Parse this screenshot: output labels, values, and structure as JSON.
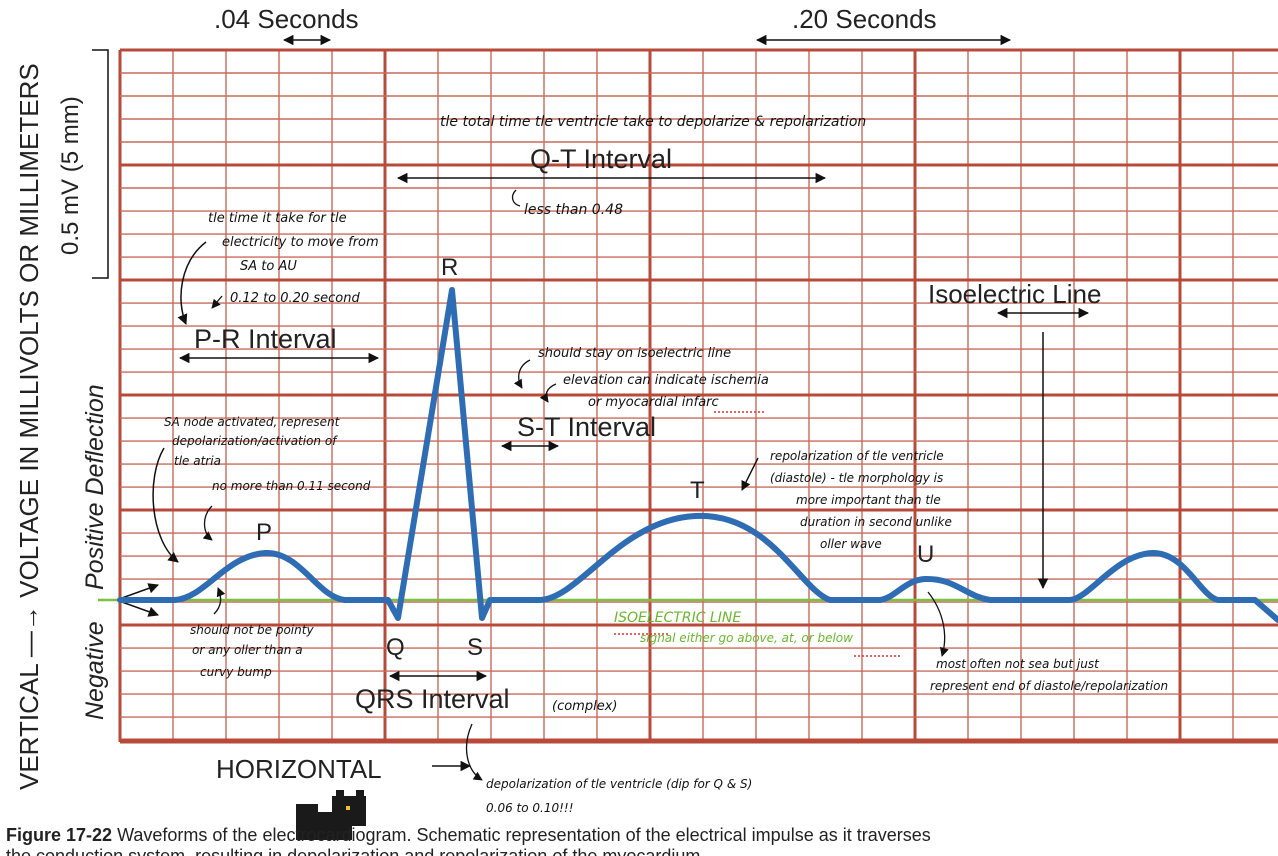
{
  "labels": {
    "time_small": ".04 Seconds",
    "time_large": ".20 Seconds",
    "vertical_axis": "VERTICAL —→ VOLTAGE IN MILLIVOLTS OR MILLIMETERS",
    "scale": "0.5 mV (5 mm)",
    "positive": "Positive Deflection",
    "negative": "Negative",
    "horizontal": "HORIZONTAL",
    "qt": "Q-T Interval",
    "pr": "P-R Interval",
    "st": "S-T Interval",
    "qrs": "QRS Interval",
    "iso": "Isoelectric Line",
    "wave_p": "P",
    "wave_q": "Q",
    "wave_r": "R",
    "wave_s": "S",
    "wave_t": "T",
    "wave_u": "U"
  },
  "caption": {
    "bold": "Figure 17-22",
    "line1": "Waveforms of the electrocardiogram. Schematic representation of the electrical impulse as it traverses",
    "line2": "the conduction system, resulting in depolarization and repolarization of the myocardium."
  },
  "notes": {
    "qt_desc": "tle total time tle ventricle take to depolarize & repolarization",
    "qt_limit": "less than 0.48",
    "pr_desc1": "tle time it take for tle",
    "pr_desc2": "electricity to move from",
    "pr_desc3": "SA to AU",
    "pr_range": "0.12 to 0.20 second",
    "st_1": "should stay on isoelectric line",
    "st_2": "elevation can indicate ischemia",
    "st_3": "or myocardial infarc",
    "p_1": "SA node activated, represent",
    "p_2": "depolarization/activation of",
    "p_3": "tle atria",
    "p_4": "no more than 0.11 second",
    "t_1": "repolarization of tle ventricle",
    "t_2": "(diastole) - tle morphology is",
    "t_3": "more important than tle",
    "t_4": "duration in second unlike",
    "t_5": "oller wave",
    "bump_1": "should not be pointy",
    "bump_2": "or any oller than a",
    "bump_3": "curvy bump",
    "iso_green": "ISOELECTRIC LINE",
    "iso_green2": "signal either go above, at, or below",
    "u_1": "most often not sea but just",
    "u_2": "represent end of diastole/repolarization",
    "qrs_complex": "(complex)",
    "qrs_1": "depolarization of tle ventricle (dip for Q & S)",
    "qrs_2": "0.06 to 0.10!!!"
  },
  "colors": {
    "grid_major": "#b84a3a",
    "grid_minor": "#c96a5a",
    "waveform": "#2e6db4",
    "isoline": "#7bc043"
  }
}
